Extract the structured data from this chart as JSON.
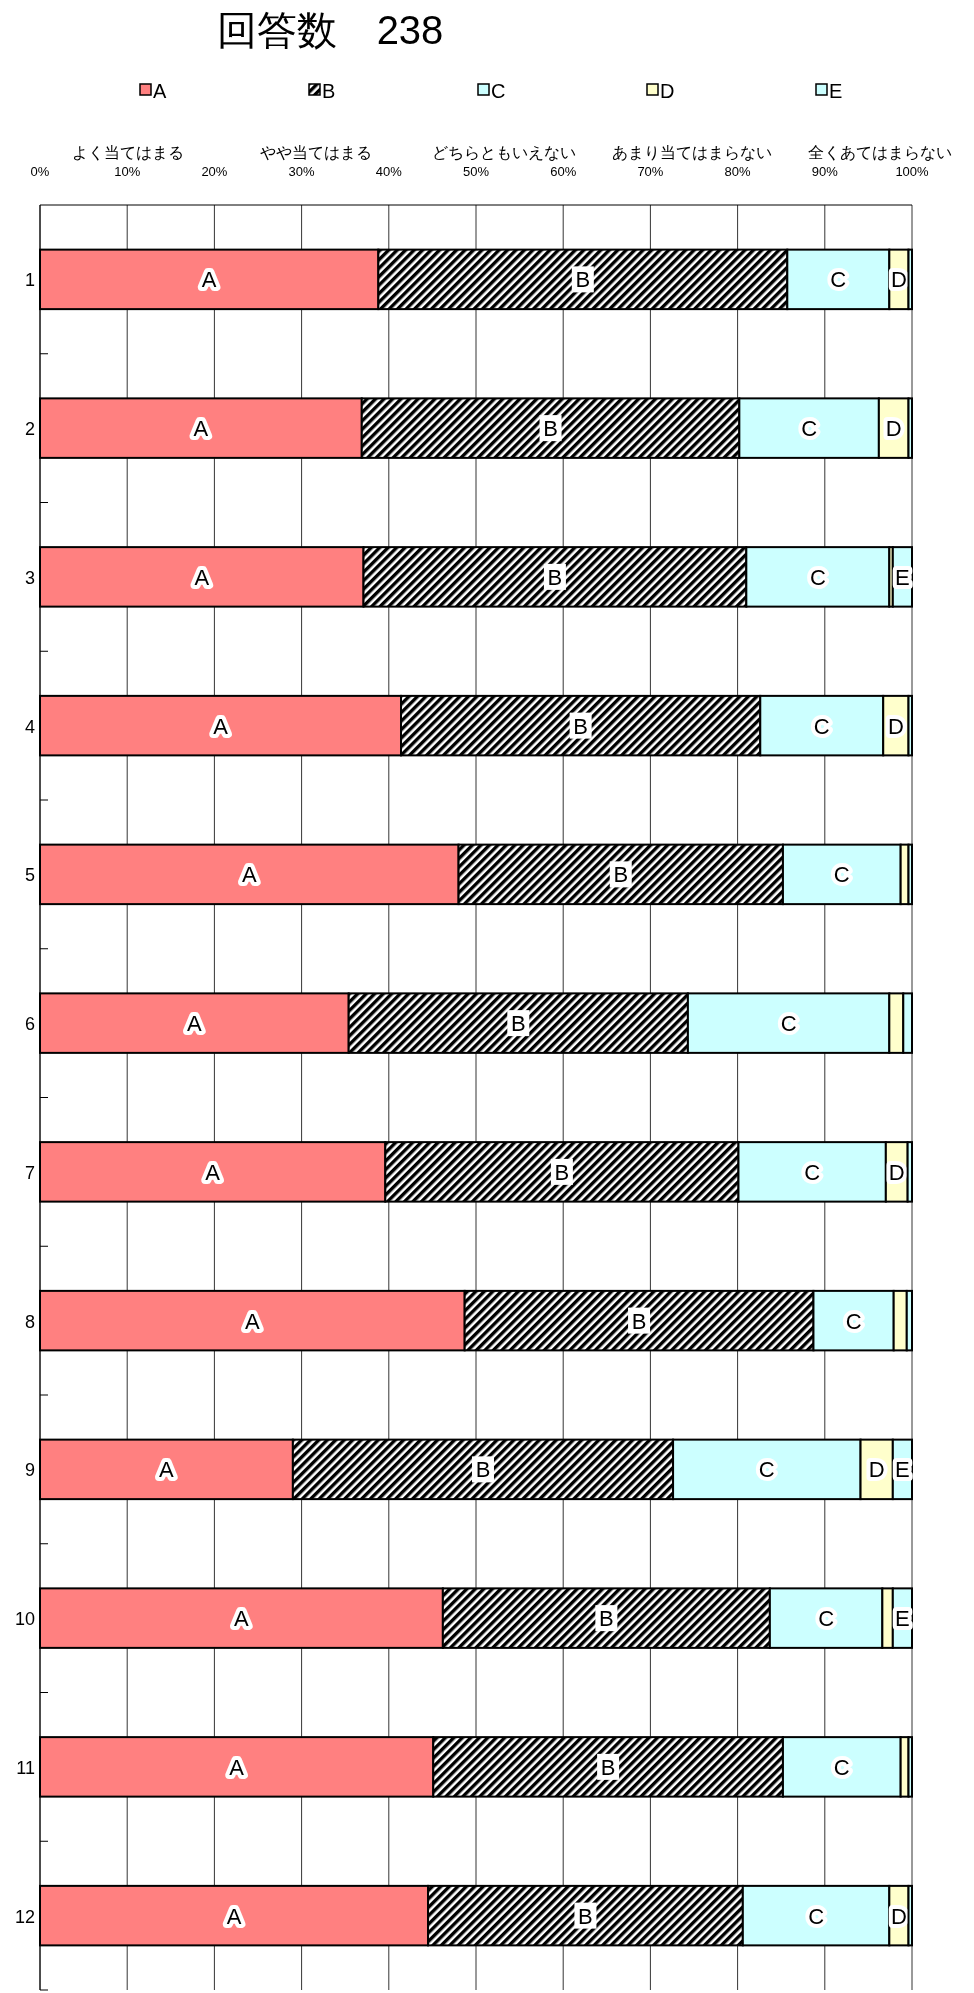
{
  "chart_data": {
    "type": "bar",
    "orientation": "horizontal",
    "stacked": true,
    "title": "回答数　238",
    "categories": [
      "1",
      "2",
      "3",
      "4",
      "5",
      "6",
      "7",
      "8",
      "9",
      "10",
      "11",
      "12"
    ],
    "series": [
      {
        "name": "A",
        "color": "#ff8080",
        "values": [
          38.8,
          36.9,
          37.1,
          41.4,
          48.0,
          35.4,
          39.6,
          48.7,
          29.0,
          46.2,
          45.1,
          44.5
        ]
      },
      {
        "name": "B",
        "color": "#000000",
        "values": [
          46.9,
          43.3,
          43.9,
          41.2,
          37.2,
          38.9,
          40.5,
          40.0,
          43.6,
          37.5,
          40.1,
          36.1
        ]
      },
      {
        "name": "C",
        "color": "#ccffff",
        "values": [
          11.7,
          16.0,
          16.4,
          14.1,
          13.5,
          23.1,
          16.9,
          9.2,
          21.5,
          12.9,
          13.5,
          16.8
        ]
      },
      {
        "name": "D",
        "color": "#ffffcc",
        "values": [
          2.2,
          3.4,
          0.4,
          2.9,
          0.9,
          1.6,
          2.5,
          1.5,
          3.7,
          1.2,
          0.9,
          2.2
        ]
      },
      {
        "name": "E",
        "color": "#ccffff",
        "values": [
          0.4,
          0.4,
          2.2,
          0.4,
          0.4,
          1.0,
          0.5,
          0.6,
          2.2,
          2.2,
          0.4,
          0.4
        ]
      }
    ],
    "xlim": [
      0,
      100
    ],
    "xticks": [
      {
        "value": 0,
        "label": "0%"
      },
      {
        "value": 10,
        "label": "10%"
      },
      {
        "value": 20,
        "label": "20%"
      },
      {
        "value": 30,
        "label": "30%"
      },
      {
        "value": 40,
        "label": "40%"
      },
      {
        "value": 50,
        "label": "50%"
      },
      {
        "value": 60,
        "label": "60%"
      },
      {
        "value": 70,
        "label": "70%"
      },
      {
        "value": 80,
        "label": "80%"
      },
      {
        "value": 90,
        "label": "90%"
      },
      {
        "value": 100,
        "label": "100%"
      }
    ],
    "annotations": [
      "よく当てはまる",
      "やや当てはまる",
      "どちらともいえない",
      "あまり当てはまらない",
      "全くあてはまらない"
    ],
    "grid": "x",
    "legend": "top"
  }
}
